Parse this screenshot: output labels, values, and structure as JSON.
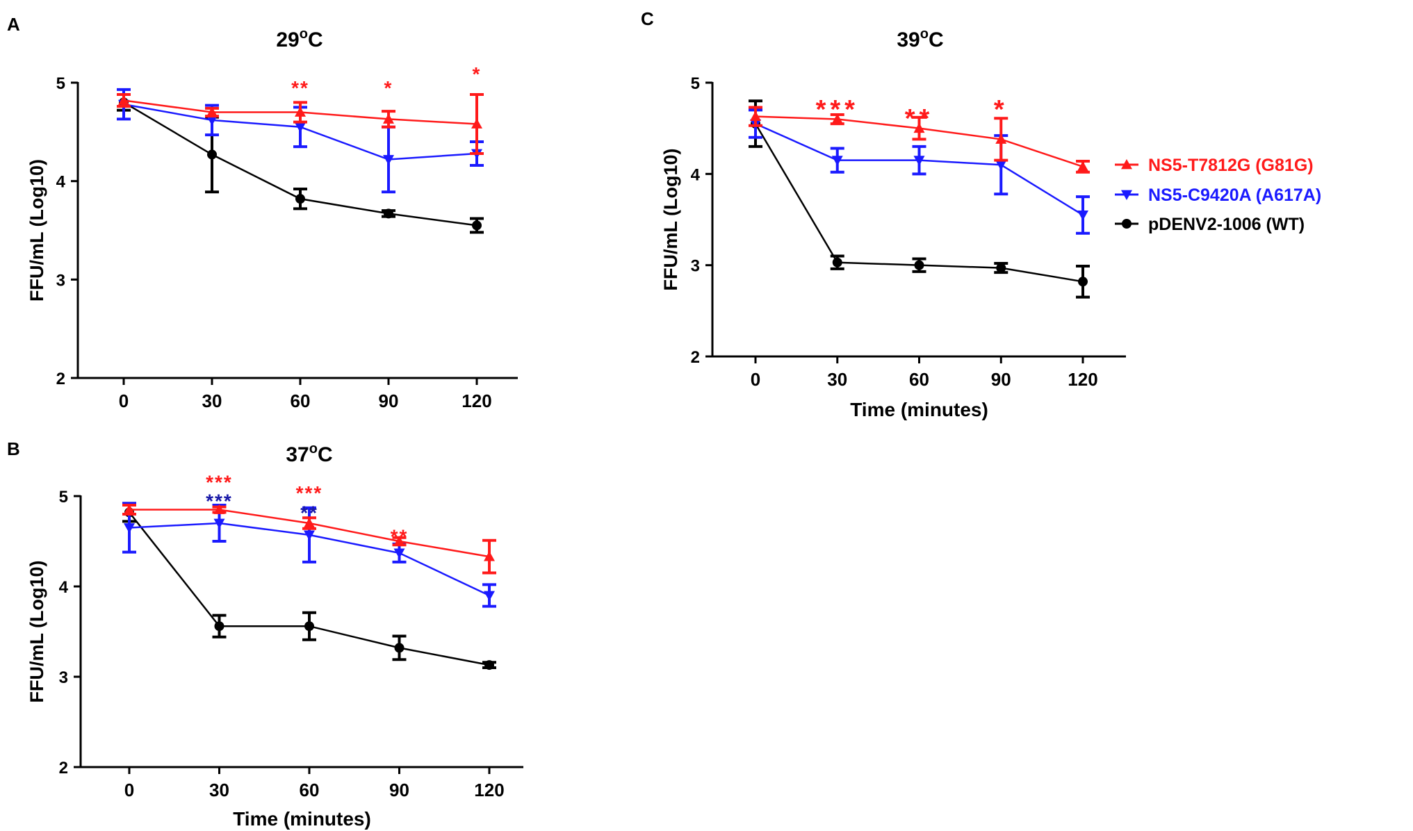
{
  "colors": {
    "red": "#ff1a1a",
    "blue": "#1a1aff",
    "black": "#000000",
    "dark_blue": "#1a1aa8"
  },
  "legend": {
    "items": [
      {
        "label": "NS5-T7812G (G81G)",
        "color": "#ff1a1a",
        "marker": "triangle-up"
      },
      {
        "label": "NS5-C9420A (A617A)",
        "color": "#1a1aff",
        "marker": "triangle-down"
      },
      {
        "label": "pDENV2-1006 (WT)",
        "color": "#000000",
        "marker": "circle"
      }
    ]
  },
  "chart_data": [
    {
      "type": "line",
      "panel": "A",
      "title_base": "29",
      "title_sup": "o",
      "title_unit": "C",
      "xlabel": "",
      "ylabel": "FFU/mL (Log10)",
      "x": [
        0,
        30,
        60,
        90,
        120
      ],
      "xticks": [
        "0",
        "30",
        "60",
        "90",
        "120"
      ],
      "yticks": [
        "2",
        "3",
        "4",
        "5"
      ],
      "ylim": [
        2,
        5
      ],
      "series": [
        {
          "name": "pDENV2-1006 (WT)",
          "color": "#000000",
          "marker": "circle",
          "values": [
            4.8,
            4.27,
            3.82,
            3.67,
            3.55
          ],
          "err": [
            0.08,
            0.38,
            0.1,
            0.03,
            0.07
          ]
        },
        {
          "name": "NS5-C9420A (A617A)",
          "color": "#1a1aff",
          "marker": "triangle-down",
          "values": [
            4.78,
            4.62,
            4.55,
            4.22,
            4.28
          ],
          "err": [
            0.15,
            0.15,
            0.2,
            0.33,
            0.12
          ]
        },
        {
          "name": "NS5-T7812G (G81G)",
          "color": "#ff1a1a",
          "marker": "triangle-up",
          "values": [
            4.82,
            4.7,
            4.7,
            4.63,
            4.58
          ],
          "err": [
            0.06,
            0.04,
            0.1,
            0.08,
            0.3
          ]
        }
      ],
      "annotations": [
        {
          "x": 60,
          "y": 4.99,
          "text": "**",
          "color": "#ff1a1a",
          "size": 28
        },
        {
          "x": 90,
          "y": 4.99,
          "text": "*",
          "color": "#ff1a1a",
          "size": 28
        },
        {
          "x": 120,
          "y": 5.13,
          "text": "*",
          "color": "#ff1a1a",
          "size": 28
        }
      ]
    },
    {
      "type": "line",
      "panel": "B",
      "title_base": "37",
      "title_sup": "o",
      "title_unit": "C",
      "xlabel": "Time (minutes)",
      "ylabel": "FFU/mL (Log10)",
      "x": [
        0,
        30,
        60,
        90,
        120
      ],
      "xticks": [
        "0",
        "30",
        "60",
        "90",
        "120"
      ],
      "yticks": [
        "2",
        "3",
        "4",
        "5"
      ],
      "ylim": [
        2,
        5
      ],
      "series": [
        {
          "name": "pDENV2-1006 (WT)",
          "color": "#000000",
          "marker": "circle",
          "values": [
            4.82,
            3.56,
            3.56,
            3.32,
            3.13
          ],
          "err": [
            0.1,
            0.12,
            0.15,
            0.13,
            0.03
          ]
        },
        {
          "name": "NS5-C9420A (A617A)",
          "color": "#1a1aff",
          "marker": "triangle-down",
          "values": [
            4.65,
            4.7,
            4.57,
            4.37,
            3.9
          ],
          "err": [
            0.27,
            0.2,
            0.3,
            0.1,
            0.12
          ]
        },
        {
          "name": "NS5-T7812G (G81G)",
          "color": "#ff1a1a",
          "marker": "triangle-up",
          "values": [
            4.85,
            4.85,
            4.7,
            4.5,
            4.33
          ],
          "err": [
            0.05,
            0.03,
            0.06,
            0.04,
            0.18
          ]
        }
      ],
      "annotations": [
        {
          "x": 30,
          "y": 5.2,
          "text": "***",
          "color": "#ff1a1a",
          "size": 28
        },
        {
          "x": 30,
          "y": 4.99,
          "text": "***",
          "color": "#1a1aa8",
          "size": 28
        },
        {
          "x": 60,
          "y": 5.08,
          "text": "***",
          "color": "#ff1a1a",
          "size": 28
        },
        {
          "x": 60,
          "y": 4.86,
          "text": "**",
          "color": "#1a1aa8",
          "size": 28
        },
        {
          "x": 90,
          "y": 4.6,
          "text": "**",
          "color": "#ff1a1a",
          "size": 28
        }
      ]
    },
    {
      "type": "line",
      "panel": "C",
      "title_base": "39",
      "title_sup": "o",
      "title_unit": "C",
      "xlabel": "Time (minutes)",
      "ylabel": "FFU/mL (Log10)",
      "x": [
        0,
        30,
        60,
        90,
        120
      ],
      "xticks": [
        "0",
        "30",
        "60",
        "90",
        "120"
      ],
      "yticks": [
        "2",
        "3",
        "4",
        "5"
      ],
      "ylim": [
        2,
        5
      ],
      "series": [
        {
          "name": "pDENV2-1006 (WT)",
          "color": "#000000",
          "marker": "circle",
          "values": [
            4.55,
            3.03,
            3.0,
            2.97,
            2.82
          ],
          "err": [
            0.25,
            0.07,
            0.07,
            0.05,
            0.17
          ]
        },
        {
          "name": "NS5-C9420A (A617A)",
          "color": "#1a1aff",
          "marker": "triangle-down",
          "values": [
            4.55,
            4.15,
            4.15,
            4.1,
            3.55
          ],
          "err": [
            0.15,
            0.13,
            0.15,
            0.32,
            0.2
          ]
        },
        {
          "name": "NS5-T7812G (G81G)",
          "color": "#ff1a1a",
          "marker": "triangle-up",
          "values": [
            4.63,
            4.6,
            4.5,
            4.38,
            4.08
          ],
          "err": [
            0.1,
            0.05,
            0.12,
            0.23,
            0.06
          ]
        }
      ],
      "annotations": [
        {
          "x": 30,
          "y": 4.77,
          "text": "***",
          "color": "#ff1a1a",
          "size": 38
        },
        {
          "x": 60,
          "y": 4.67,
          "text": "**",
          "color": "#ff1a1a",
          "size": 38
        },
        {
          "x": 90,
          "y": 4.77,
          "text": "*",
          "color": "#ff1a1a",
          "size": 38
        }
      ]
    }
  ],
  "panel_labels": [
    "A",
    "B",
    "C"
  ]
}
